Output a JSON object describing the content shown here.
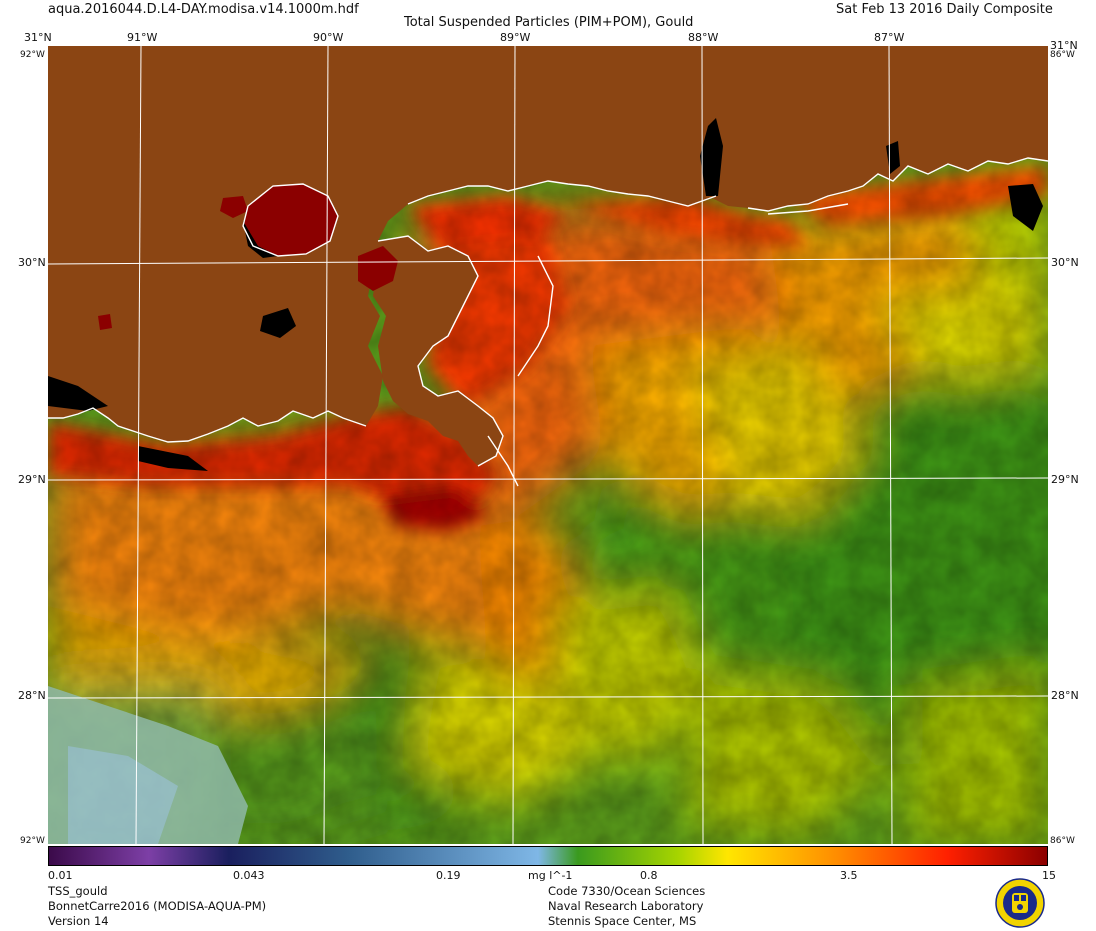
{
  "header": {
    "filename": "aqua.2016044.D.L4-DAY.modisa.v14.1000m.hdf",
    "product_title": "Total Suspended Particles (PIM+POM), Gould",
    "date_label": "Sat Feb 13 2016 Daily Composite"
  },
  "map": {
    "lon_ticks": [
      "91°W",
      "90°W",
      "89°W",
      "88°W",
      "87°W"
    ],
    "lat_ticks": [
      "30°N",
      "29°N",
      "28°N"
    ],
    "corner_top_left": "31°N",
    "corner_top_right": "31°N",
    "corner_labels_small": [
      "92°W",
      "86°W",
      "86°W",
      "92°W"
    ],
    "colors": {
      "land": "#8b4513",
      "graticule": "#ffffff",
      "coastline": "#ffffff",
      "nodata": "#000000"
    }
  },
  "colorbar": {
    "ticks": [
      "0.01",
      "0.043",
      "0.19",
      "mg l^-1",
      "0.8",
      "3.5",
      "15"
    ],
    "stops": [
      "#3b0a4a",
      "#7d3fa6",
      "#1a1f5e",
      "#2f5d8c",
      "#7fb7e6",
      "#3a9a1e",
      "#a6d400",
      "#ffe600",
      "#ff8c00",
      "#ff2000",
      "#8b0000"
    ]
  },
  "footer": {
    "left": [
      "TSS_gould",
      "BonnetCarre2016 (MODISA-AQUA-PM)",
      "Version 14"
    ],
    "right": [
      "Code 7330/Ocean Sciences",
      "Naval Research Laboratory",
      "Stennis Space Center, MS"
    ]
  },
  "logo": {
    "icon": "naval-research-laboratory-seal-icon"
  }
}
